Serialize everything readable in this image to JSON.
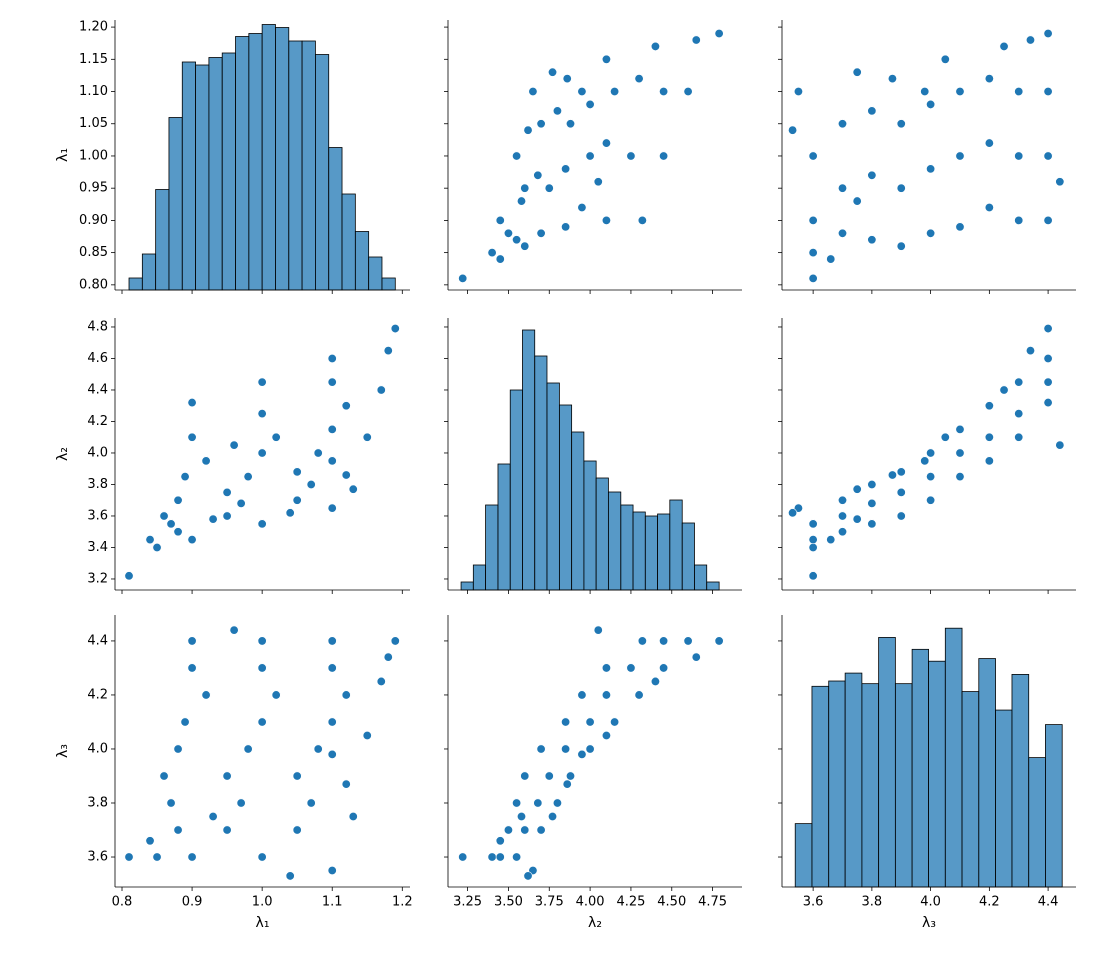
{
  "chart_data": [
    {
      "type": "hist",
      "color": "#1f77b4",
      "ylabel": "λ₁",
      "bins": [
        0.81,
        0.829,
        0.848,
        0.867,
        0.886,
        0.905,
        0.924,
        0.943,
        0.962,
        0.981,
        1.0,
        1.019,
        1.038,
        1.057,
        1.076,
        1.095,
        1.114,
        1.133,
        1.152,
        1.171,
        1.19
      ],
      "counts": [
        8,
        24,
        67,
        115,
        152,
        150,
        155,
        158,
        169,
        171,
        177,
        175,
        166,
        166,
        157,
        95,
        64,
        39,
        22,
        8
      ],
      "count_range": [
        0,
        180
      ],
      "xlim": [
        0.79,
        1.211
      ],
      "xticks": [
        0.8,
        0.9,
        1,
        1.1,
        1.2
      ],
      "ylim": [
        0.792,
        1.211
      ],
      "yticks": [
        {
          "value": 0.8,
          "label": "0.80"
        },
        {
          "value": 0.85,
          "label": "0.85"
        },
        {
          "value": 0.9,
          "label": "0.90"
        },
        {
          "value": 0.95,
          "label": "0.95"
        },
        {
          "value": 1,
          "label": "1.00"
        },
        {
          "value": 1.05,
          "label": "1.05"
        },
        {
          "value": 1.1,
          "label": "1.10"
        },
        {
          "value": 1.15,
          "label": "1.15"
        },
        {
          "value": 1.2,
          "label": "1.20"
        }
      ]
    },
    {
      "type": "scatter",
      "color": "#1f77b4",
      "x": [
        3.22,
        3.4,
        3.45,
        3.55,
        3.65,
        3.5,
        3.6,
        3.7,
        3.77,
        3.55,
        3.68,
        3.8,
        3.86,
        3.6,
        3.75,
        3.88,
        3.95,
        3.7,
        3.85,
        4.0,
        4.1,
        3.85,
        4.0,
        4.15,
        3.95,
        4.1,
        4.3,
        4.4,
        4.1,
        4.25,
        4.45,
        4.65,
        4.32,
        4.45,
        4.6,
        4.79,
        4.05,
        3.45,
        3.62,
        3.58
      ],
      "y": [
        0.81,
        0.85,
        0.9,
        1.0,
        1.1,
        0.88,
        0.95,
        1.05,
        1.13,
        0.87,
        0.97,
        1.07,
        1.12,
        0.86,
        0.95,
        1.05,
        1.1,
        0.88,
        0.98,
        1.08,
        1.15,
        0.89,
        1.0,
        1.1,
        0.92,
        1.02,
        1.12,
        1.17,
        0.9,
        1.0,
        1.1,
        1.18,
        0.9,
        1.0,
        1.1,
        1.19,
        0.96,
        0.84,
        1.04,
        0.93
      ],
      "xlim": [
        3.13,
        4.93
      ],
      "xticks": [
        3.25,
        3.5,
        3.75,
        4,
        4.25,
        4.5,
        4.75
      ],
      "ylim": [
        0.792,
        1.211
      ],
      "yticks": [
        0.8,
        0.85,
        0.9,
        0.95,
        1,
        1.05,
        1.1,
        1.15,
        1.2
      ]
    },
    {
      "type": "scatter",
      "color": "#1f77b4",
      "x": [
        3.6,
        3.6,
        3.6,
        3.6,
        3.55,
        3.7,
        3.7,
        3.7,
        3.75,
        3.8,
        3.8,
        3.8,
        3.87,
        3.9,
        3.9,
        3.9,
        3.98,
        4.0,
        4.0,
        4.0,
        4.05,
        4.1,
        4.1,
        4.1,
        4.2,
        4.2,
        4.2,
        4.25,
        4.3,
        4.3,
        4.3,
        4.34,
        4.4,
        4.4,
        4.4,
        4.4,
        4.44,
        3.66,
        3.53,
        3.75
      ],
      "y": [
        0.81,
        0.85,
        0.9,
        1.0,
        1.1,
        0.88,
        0.95,
        1.05,
        1.13,
        0.87,
        0.97,
        1.07,
        1.12,
        0.86,
        0.95,
        1.05,
        1.1,
        0.88,
        0.98,
        1.08,
        1.15,
        0.89,
        1.0,
        1.1,
        0.92,
        1.02,
        1.12,
        1.17,
        0.9,
        1.0,
        1.1,
        1.18,
        0.9,
        1.0,
        1.1,
        1.19,
        0.96,
        0.84,
        1.04,
        0.93
      ],
      "xlim": [
        3.494,
        4.495
      ],
      "xticks": [
        3.6,
        3.8,
        4,
        4.2,
        4.4
      ],
      "ylim": [
        0.792,
        1.211
      ],
      "yticks": [
        0.8,
        0.85,
        0.9,
        0.95,
        1,
        1.05,
        1.1,
        1.15,
        1.2
      ]
    },
    {
      "type": "scatter",
      "color": "#1f77b4",
      "ylabel": "λ₂",
      "x": [
        0.81,
        0.85,
        0.9,
        1.0,
        1.1,
        0.88,
        0.95,
        1.05,
        1.13,
        0.87,
        0.97,
        1.07,
        1.12,
        0.86,
        0.95,
        1.05,
        1.1,
        0.88,
        0.98,
        1.08,
        1.15,
        0.89,
        1.0,
        1.1,
        0.92,
        1.02,
        1.12,
        1.17,
        0.9,
        1.0,
        1.1,
        1.18,
        0.9,
        1.0,
        1.1,
        1.19,
        0.96,
        0.84,
        1.04,
        0.93
      ],
      "y": [
        3.22,
        3.4,
        3.45,
        3.55,
        3.65,
        3.5,
        3.6,
        3.7,
        3.77,
        3.55,
        3.68,
        3.8,
        3.86,
        3.6,
        3.75,
        3.88,
        3.95,
        3.7,
        3.85,
        4.0,
        4.1,
        3.85,
        4.0,
        4.15,
        3.95,
        4.1,
        4.3,
        4.4,
        4.1,
        4.25,
        4.45,
        4.65,
        4.32,
        4.45,
        4.6,
        4.79,
        4.05,
        3.45,
        3.62,
        3.58
      ],
      "xlim": [
        0.79,
        1.211
      ],
      "xticks": [
        0.8,
        0.9,
        1,
        1.1,
        1.2
      ],
      "ylim": [
        3.13,
        4.857
      ],
      "yticks": [
        3.2,
        3.4,
        3.6,
        3.8,
        {
          "value": 4,
          "label": "4.0"
        },
        4.2,
        4.4,
        4.6,
        4.8
      ]
    },
    {
      "type": "hist",
      "color": "#1f77b4",
      "bins": [
        3.21,
        3.285,
        3.36,
        3.436,
        3.511,
        3.586,
        3.661,
        3.736,
        3.812,
        3.887,
        3.962,
        4.037,
        4.112,
        4.188,
        4.263,
        4.338,
        4.413,
        4.488,
        4.564,
        4.639,
        4.714,
        4.79
      ],
      "counts": [
        8,
        25,
        85,
        126,
        200,
        260,
        234,
        207,
        185,
        158,
        129,
        112,
        98,
        85,
        78,
        74,
        76,
        90,
        67,
        25,
        8
      ],
      "count_range": [
        0,
        272
      ],
      "xlim": [
        3.13,
        4.93
      ],
      "xticks": [
        3.25,
        3.5,
        3.75,
        4,
        4.25,
        4.5,
        4.75
      ],
      "ylim": [
        3.13,
        4.857
      ],
      "yticks": [
        3.2,
        3.4,
        3.6,
        3.8,
        4,
        4.2,
        4.4,
        4.6,
        4.8
      ]
    },
    {
      "type": "scatter",
      "color": "#1f77b4",
      "x": [
        3.6,
        3.6,
        3.6,
        3.6,
        3.55,
        3.7,
        3.7,
        3.7,
        3.75,
        3.8,
        3.8,
        3.8,
        3.87,
        3.9,
        3.9,
        3.9,
        3.98,
        4.0,
        4.0,
        4.0,
        4.05,
        4.1,
        4.1,
        4.1,
        4.2,
        4.2,
        4.2,
        4.25,
        4.3,
        4.3,
        4.3,
        4.34,
        4.4,
        4.4,
        4.4,
        4.4,
        4.44,
        3.66,
        3.53,
        3.75
      ],
      "y": [
        3.22,
        3.4,
        3.45,
        3.55,
        3.65,
        3.5,
        3.6,
        3.7,
        3.77,
        3.55,
        3.68,
        3.8,
        3.86,
        3.6,
        3.75,
        3.88,
        3.95,
        3.7,
        3.85,
        4.0,
        4.1,
        3.85,
        4.0,
        4.15,
        3.95,
        4.1,
        4.3,
        4.4,
        4.1,
        4.25,
        4.45,
        4.65,
        4.32,
        4.45,
        4.6,
        4.79,
        4.05,
        3.45,
        3.62,
        3.58
      ],
      "xlim": [
        3.494,
        4.495
      ],
      "xticks": [
        3.6,
        3.8,
        4,
        4.2,
        4.4
      ],
      "ylim": [
        3.13,
        4.857
      ],
      "yticks": [
        3.2,
        3.4,
        3.6,
        3.8,
        4,
        4.2,
        4.4,
        4.6,
        4.8
      ]
    },
    {
      "type": "scatter",
      "color": "#1f77b4",
      "xlabel": "λ₁",
      "ylabel": "λ₃",
      "x": [
        0.81,
        0.85,
        0.9,
        1.0,
        1.1,
        0.88,
        0.95,
        1.05,
        1.13,
        0.87,
        0.97,
        1.07,
        1.12,
        0.86,
        0.95,
        1.05,
        1.1,
        0.88,
        0.98,
        1.08,
        1.15,
        0.89,
        1.0,
        1.1,
        0.92,
        1.02,
        1.12,
        1.17,
        0.9,
        1.0,
        1.1,
        1.18,
        0.9,
        1.0,
        1.1,
        1.19,
        0.96,
        0.84,
        1.04,
        0.93
      ],
      "y": [
        3.6,
        3.6,
        3.6,
        3.6,
        3.55,
        3.7,
        3.7,
        3.7,
        3.75,
        3.8,
        3.8,
        3.8,
        3.87,
        3.9,
        3.9,
        3.9,
        3.98,
        4.0,
        4.0,
        4.0,
        4.05,
        4.1,
        4.1,
        4.1,
        4.2,
        4.2,
        4.2,
        4.25,
        4.3,
        4.3,
        4.3,
        4.34,
        4.4,
        4.4,
        4.4,
        4.4,
        4.44,
        3.66,
        3.53,
        3.75
      ],
      "xlim": [
        0.79,
        1.211
      ],
      "xticks": [
        0.8,
        0.9,
        {
          "value": 1,
          "label": "1.0"
        },
        1.1,
        1.2
      ],
      "ylim": [
        3.489,
        4.496
      ],
      "yticks": [
        3.6,
        3.8,
        {
          "value": 4,
          "label": "4.0"
        },
        4.2,
        4.4
      ]
    },
    {
      "type": "scatter",
      "color": "#1f77b4",
      "xlabel": "λ₂",
      "x": [
        3.22,
        3.4,
        3.45,
        3.55,
        3.65,
        3.5,
        3.6,
        3.7,
        3.77,
        3.55,
        3.68,
        3.8,
        3.86,
        3.6,
        3.75,
        3.88,
        3.95,
        3.7,
        3.85,
        4.0,
        4.1,
        3.85,
        4.0,
        4.15,
        3.95,
        4.1,
        4.3,
        4.4,
        4.1,
        4.25,
        4.45,
        4.65,
        4.32,
        4.45,
        4.6,
        4.79,
        4.05,
        3.45,
        3.62,
        3.58
      ],
      "y": [
        3.6,
        3.6,
        3.6,
        3.6,
        3.55,
        3.7,
        3.7,
        3.7,
        3.75,
        3.8,
        3.8,
        3.8,
        3.87,
        3.9,
        3.9,
        3.9,
        3.98,
        4.0,
        4.0,
        4.0,
        4.05,
        4.1,
        4.1,
        4.1,
        4.2,
        4.2,
        4.2,
        4.25,
        4.3,
        4.3,
        4.3,
        4.34,
        4.4,
        4.4,
        4.4,
        4.4,
        4.44,
        3.66,
        3.53,
        3.75
      ],
      "xlim": [
        3.13,
        4.93
      ],
      "xticks": [
        3.25,
        {
          "value": 3.5,
          "label": "3.50"
        },
        3.75,
        {
          "value": 4,
          "label": "4.00"
        },
        4.25,
        {
          "value": 4.5,
          "label": "4.50"
        },
        4.75
      ],
      "ylim": [
        3.489,
        4.496
      ],
      "yticks": [
        3.6,
        3.8,
        4,
        4.2,
        4.4
      ]
    },
    {
      "type": "hist",
      "color": "#1f77b4",
      "xlabel": "λ₃",
      "bins": [
        3.539,
        3.596,
        3.653,
        3.709,
        3.766,
        3.823,
        3.88,
        3.937,
        3.993,
        4.05,
        4.107,
        4.164,
        4.221,
        4.277,
        4.334,
        4.391,
        4.448
      ],
      "counts": [
        48,
        152,
        156,
        162,
        154,
        189,
        154,
        180,
        171,
        196,
        148,
        173,
        134,
        161,
        98,
        123
      ],
      "count_range": [
        0,
        206
      ],
      "xlim": [
        3.494,
        4.495
      ],
      "xticks": [
        3.6,
        3.8,
        {
          "value": 4,
          "label": "4.0"
        },
        4.2,
        4.4
      ],
      "ylim": [
        3.489,
        4.496
      ],
      "yticks": [
        3.6,
        3.8,
        4,
        4.2,
        4.4
      ]
    }
  ]
}
